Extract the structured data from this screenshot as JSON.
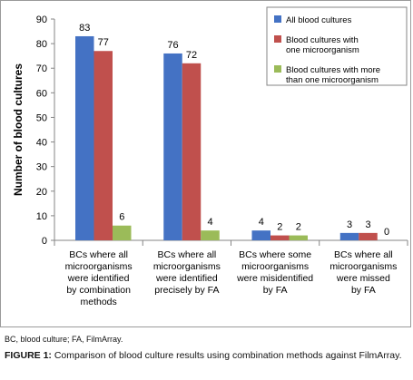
{
  "chart_data": {
    "type": "bar",
    "ylabel": "Number of blood cultures",
    "xlabel": "",
    "ylim": [
      0,
      90
    ],
    "yticks": [
      0,
      10,
      20,
      30,
      40,
      50,
      60,
      70,
      80,
      90
    ],
    "grid": false,
    "legend_position": "top-right",
    "categories": [
      [
        "BCs where all",
        "microorganisms",
        "were identified",
        "by combination",
        "methods"
      ],
      [
        "BCs where all",
        "microorganisms",
        "were identified",
        "precisely by FA"
      ],
      [
        "BCs where some",
        "microorganisms",
        "were misidentified",
        "by FA"
      ],
      [
        "BCs where all",
        "microorganisms",
        "were missed",
        "by FA"
      ]
    ],
    "series": [
      {
        "name": [
          "All blood cultures"
        ],
        "color": "#4472C4",
        "values": [
          83,
          76,
          4,
          3
        ]
      },
      {
        "name": [
          "Blood cultures with",
          "one microorganism"
        ],
        "color": "#C0504D",
        "values": [
          77,
          72,
          2,
          3
        ]
      },
      {
        "name": [
          "Blood cultures with more",
          "than one microorganism"
        ],
        "color": "#9BBB59",
        "values": [
          6,
          4,
          2,
          0
        ]
      }
    ],
    "data_labels": [
      [
        "83",
        "77",
        "6"
      ],
      [
        "76",
        "72",
        "4"
      ],
      [
        "4",
        "2",
        "2"
      ],
      [
        "3",
        "3",
        "0"
      ]
    ]
  },
  "footnote": "BC, blood culture; FA, FilmArray.",
  "caption": {
    "label": "FIGURE 1:",
    "text": "Comparison of blood culture results using combination methods against FilmArray."
  }
}
